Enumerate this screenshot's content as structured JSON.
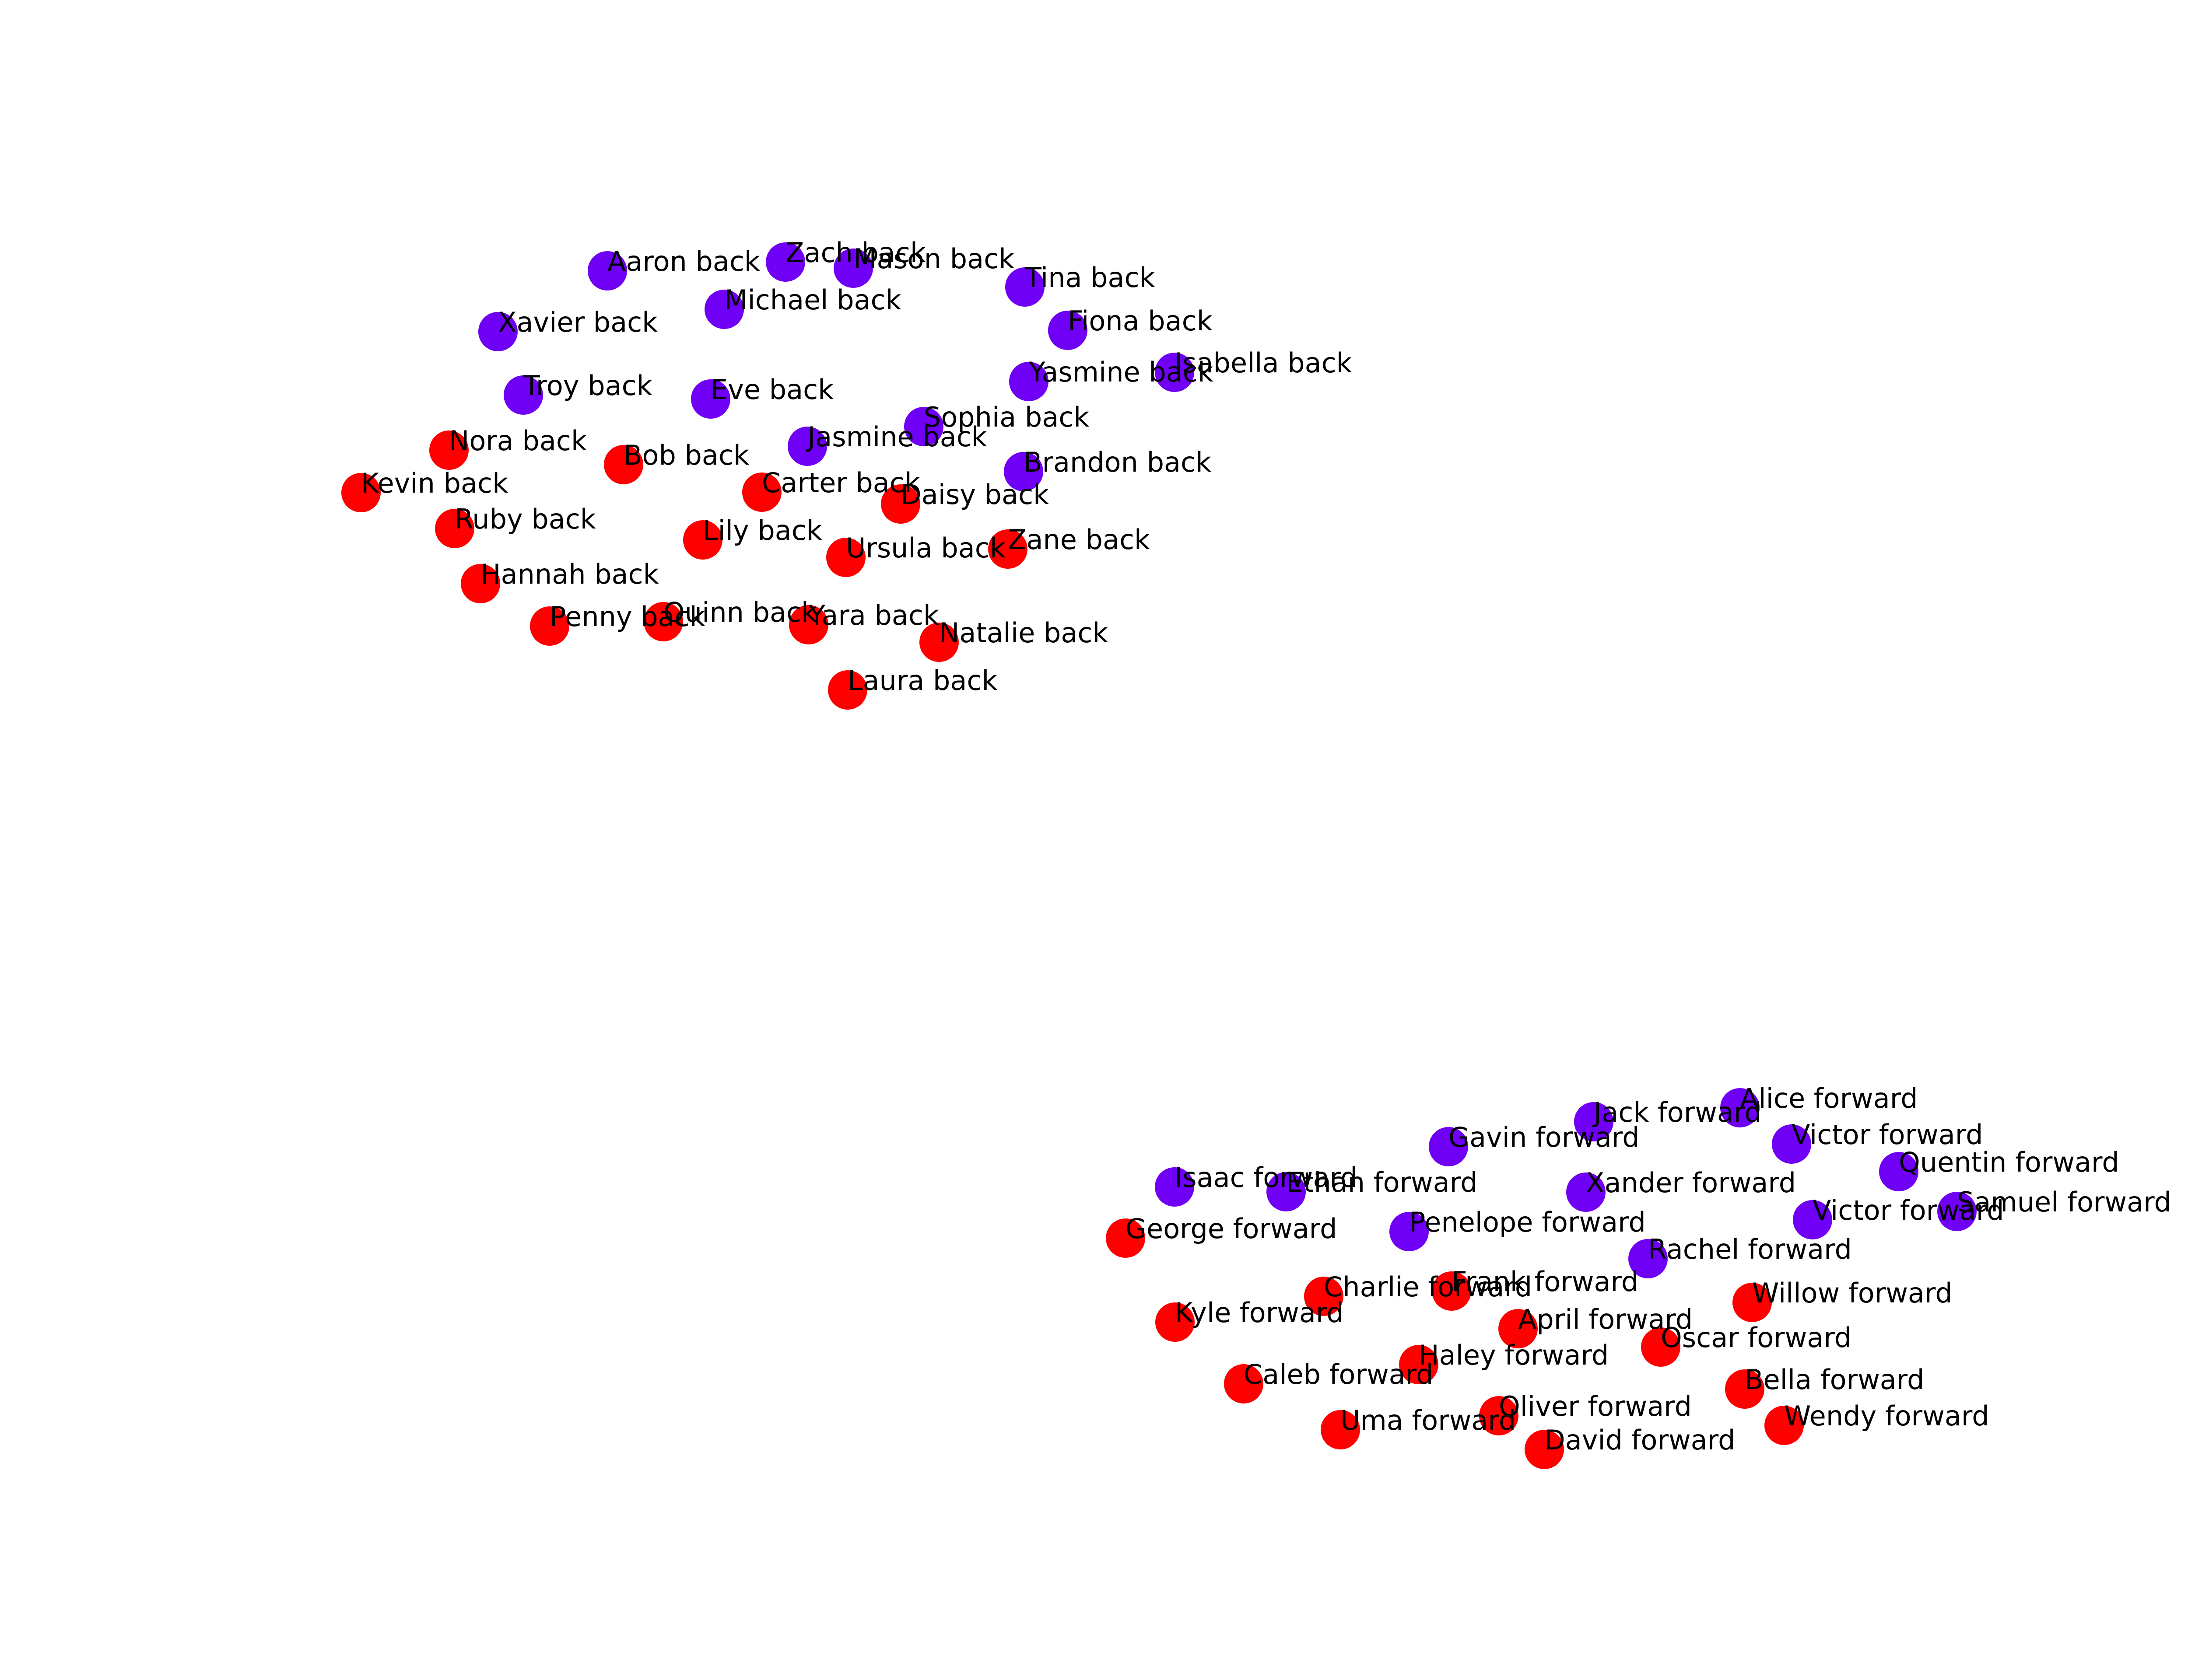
{
  "legend_colors": {
    "purple": "#7000f5",
    "red": "#ff0000"
  },
  "nodes": [
    {
      "label": "Aaron back",
      "color": "purple"
    },
    {
      "label": "Zach back",
      "color": "purple"
    },
    {
      "label": "Mason back",
      "color": "purple"
    },
    {
      "label": "Tina back",
      "color": "purple"
    },
    {
      "label": "Michael back",
      "color": "purple"
    },
    {
      "label": "Xavier back",
      "color": "purple"
    },
    {
      "label": "Fiona back",
      "color": "purple"
    },
    {
      "label": "Isabella back",
      "color": "purple"
    },
    {
      "label": "Yasmine back",
      "color": "purple"
    },
    {
      "label": "Troy back",
      "color": "purple"
    },
    {
      "label": "Eve back",
      "color": "purple"
    },
    {
      "label": "Sophia back",
      "color": "purple"
    },
    {
      "label": "Jasmine back",
      "color": "purple"
    },
    {
      "label": "Brandon back",
      "color": "purple"
    },
    {
      "label": "Nora back",
      "color": "red"
    },
    {
      "label": "Bob back",
      "color": "red"
    },
    {
      "label": "Kevin back",
      "color": "red"
    },
    {
      "label": "Carter back",
      "color": "red"
    },
    {
      "label": "Daisy back",
      "color": "red"
    },
    {
      "label": "Ruby back",
      "color": "red"
    },
    {
      "label": "Lily back",
      "color": "red"
    },
    {
      "label": "Ursula back",
      "color": "red"
    },
    {
      "label": "Zane back",
      "color": "red"
    },
    {
      "label": "Hannah back",
      "color": "red"
    },
    {
      "label": "Penny back",
      "color": "red"
    },
    {
      "label": "Quinn back",
      "color": "red"
    },
    {
      "label": "Yara back",
      "color": "red"
    },
    {
      "label": "Natalie back",
      "color": "red"
    },
    {
      "label": "Laura back",
      "color": "red"
    },
    {
      "label": "Alice forward",
      "color": "purple"
    },
    {
      "label": "Jack forward",
      "color": "purple"
    },
    {
      "label": "Gavin forward",
      "color": "purple"
    },
    {
      "label": "Victor forward",
      "color": "purple"
    },
    {
      "label": "Quentin forward",
      "color": "purple"
    },
    {
      "label": "Isaac forward",
      "color": "purple"
    },
    {
      "label": "Ethan forward",
      "color": "purple"
    },
    {
      "label": "Xander forward",
      "color": "purple"
    },
    {
      "label": "Samuel forward",
      "color": "purple"
    },
    {
      "label": "Victor forward",
      "color": "purple"
    },
    {
      "label": "Penelope forward",
      "color": "purple"
    },
    {
      "label": "Rachel forward",
      "color": "purple"
    },
    {
      "label": "George forward",
      "color": "red"
    },
    {
      "label": "Frank forward",
      "color": "red"
    },
    {
      "label": "Charlie forward",
      "color": "red"
    },
    {
      "label": "Willow forward",
      "color": "red"
    },
    {
      "label": "Kyle forward",
      "color": "red"
    },
    {
      "label": "April forward",
      "color": "red"
    },
    {
      "label": "Oscar forward",
      "color": "red"
    },
    {
      "label": "Haley forward",
      "color": "red"
    },
    {
      "label": "Caleb forward",
      "color": "red"
    },
    {
      "label": "Bella forward",
      "color": "red"
    },
    {
      "label": "Oliver forward",
      "color": "red"
    },
    {
      "label": "Wendy forward",
      "color": "red"
    },
    {
      "label": "Uma forward",
      "color": "red"
    },
    {
      "label": "David forward",
      "color": "red"
    }
  ]
}
